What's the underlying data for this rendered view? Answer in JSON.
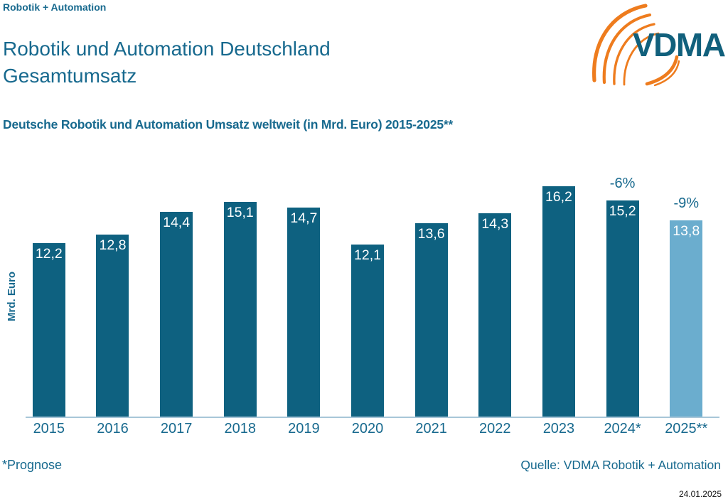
{
  "header": {
    "brand": "Robotik + Automation",
    "title_line1": "Robotik und Automation Deutschland",
    "title_line2": "Gesamtumsatz",
    "subtitle": "Deutsche Robotik und Automation Umsatz weltweit (in Mrd. Euro) 2015-2025**"
  },
  "logo": {
    "text": "VDMA",
    "orange": "#ee7c1e",
    "teal": "#11607c"
  },
  "chart_data": {
    "type": "bar",
    "title": "Deutsche Robotik und Automation Umsatz weltweit (in Mrd. Euro) 2015-2025**",
    "xlabel": "",
    "ylabel": "Mrd. Euro",
    "categories": [
      "2015",
      "2016",
      "2017",
      "2018",
      "2019",
      "2020",
      "2021",
      "2022",
      "2023",
      "2024*",
      "2025**"
    ],
    "values": [
      12.2,
      12.8,
      14.4,
      15.1,
      14.7,
      12.1,
      13.6,
      14.3,
      16.2,
      15.2,
      13.8
    ],
    "value_labels": [
      "12,2",
      "12,8",
      "14,4",
      "15,1",
      "14,7",
      "12,1",
      "13,6",
      "14,3",
      "16,2",
      "15,2",
      "13,8"
    ],
    "annotations": [
      {
        "index": 9,
        "label": "-6%"
      },
      {
        "index": 10,
        "label": "-9%"
      }
    ],
    "forecast_index": 10,
    "ylim": [
      0,
      17.8
    ],
    "grid": false,
    "legend": false,
    "colors": {
      "bar": "#0e6180",
      "forecast_bar": "#6badce",
      "axis_line": "#a8c6d8",
      "value_text": "#ffffff",
      "accent_text": "#17698e"
    }
  },
  "footer": {
    "prognose_note": "*Prognose",
    "source": "Quelle: VDMA Robotik + Automation",
    "date": "24.01.2025"
  }
}
